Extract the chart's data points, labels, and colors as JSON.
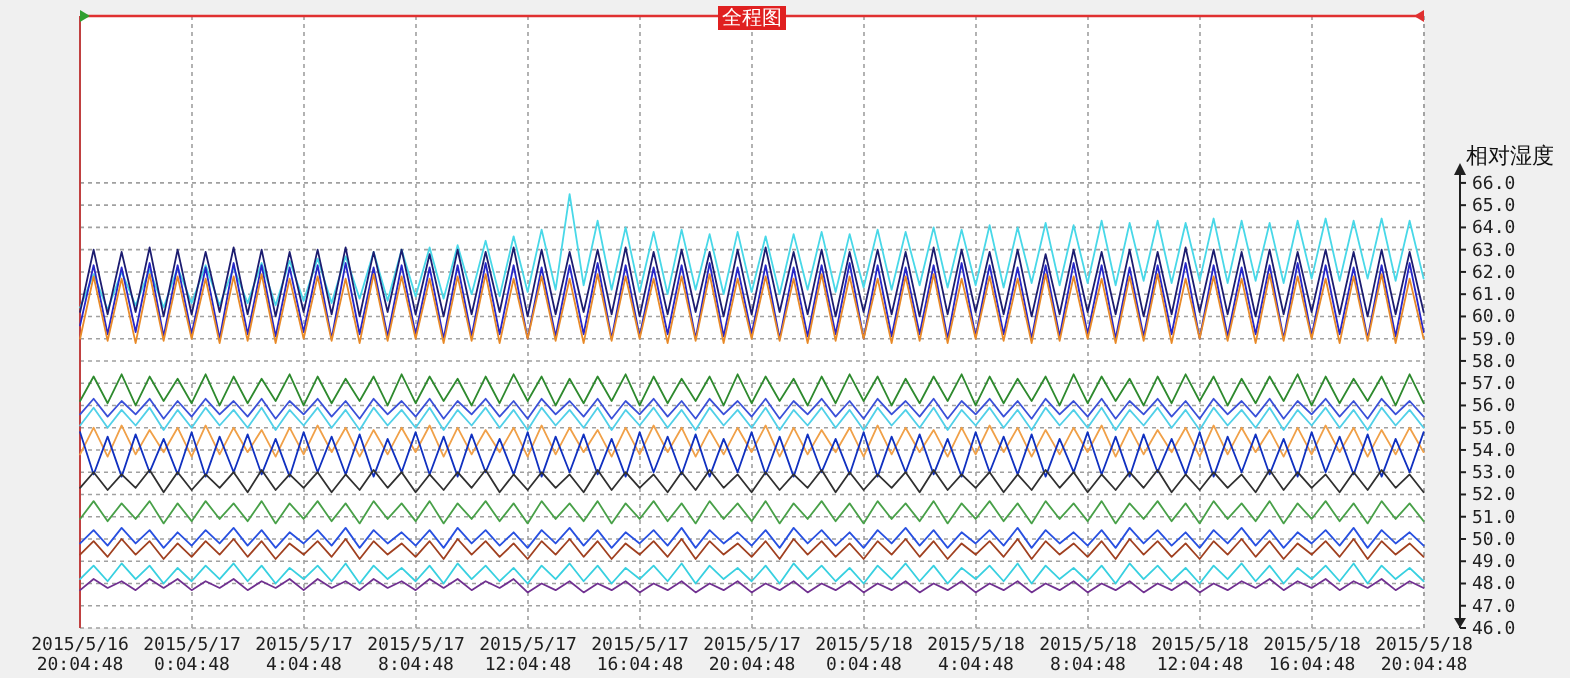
{
  "chart_data": {
    "type": "line",
    "title": "全程图",
    "ylabel": "相对湿度",
    "grid": true,
    "xlim": [
      "2015-05-16T20:04:48",
      "2015-05-18T20:04:48"
    ],
    "xticks": [
      {
        "value": "2015-05-16T20:04:48",
        "label": "2015/5/16 20:04:48"
      },
      {
        "value": "2015-05-17T00:04:48",
        "label": "2015/5/17 0:04:48"
      },
      {
        "value": "2015-05-17T04:04:48",
        "label": "2015/5/17 4:04:48"
      },
      {
        "value": "2015-05-17T08:04:48",
        "label": "2015/5/17 8:04:48"
      },
      {
        "value": "2015-05-17T12:04:48",
        "label": "2015/5/17 12:04:48"
      },
      {
        "value": "2015-05-17T16:04:48",
        "label": "2015/5/17 16:04:48"
      },
      {
        "value": "2015-05-17T20:04:48",
        "label": "2015/5/17 20:04:48"
      },
      {
        "value": "2015-05-18T00:04:48",
        "label": "2015/5/18 0:04:48"
      },
      {
        "value": "2015-05-18T04:04:48",
        "label": "2015/5/18 4:04:48"
      },
      {
        "value": "2015-05-18T08:04:48",
        "label": "2015/5/18 8:04:48"
      },
      {
        "value": "2015-05-18T12:04:48",
        "label": "2015/5/18 12:04:48"
      },
      {
        "value": "2015-05-18T16:04:48",
        "label": "2015/5/18 16:04:48"
      },
      {
        "value": "2015-05-18T20:04:48",
        "label": "2015/5/18 20:04:48"
      }
    ],
    "ylim": [
      46,
      73.5
    ],
    "yticks": [
      {
        "value": 46,
        "label": "46.0"
      },
      {
        "value": 47,
        "label": "47.0"
      },
      {
        "value": 48,
        "label": "48.0"
      },
      {
        "value": 49,
        "label": "49.0"
      },
      {
        "value": 50,
        "label": "50.0"
      },
      {
        "value": 51,
        "label": "51.0"
      },
      {
        "value": 52,
        "label": "52.0"
      },
      {
        "value": 53,
        "label": "53.0"
      },
      {
        "value": 54,
        "label": "54.0"
      },
      {
        "value": 55,
        "label": "55.0"
      },
      {
        "value": 56,
        "label": "56.0"
      },
      {
        "value": 57,
        "label": "57.0"
      },
      {
        "value": 58,
        "label": "58.0"
      },
      {
        "value": 59,
        "label": "59.0"
      },
      {
        "value": 60,
        "label": "60.0"
      },
      {
        "value": 61,
        "label": "61.0"
      },
      {
        "value": 62,
        "label": "62.0"
      },
      {
        "value": 63,
        "label": "63.0"
      },
      {
        "value": 64,
        "label": "64.0"
      },
      {
        "value": 65,
        "label": "65.0"
      },
      {
        "value": 66,
        "label": "66.0"
      }
    ],
    "x": [
      "2015-05-16T20:05",
      "2015-05-16T20:34",
      "2015-05-16T21:04",
      "2015-05-16T21:34",
      "2015-05-16T22:04",
      "2015-05-16T22:34",
      "2015-05-16T23:04",
      "2015-05-16T23:34",
      "2015-05-17T00:04",
      "2015-05-17T00:34",
      "2015-05-17T01:04",
      "2015-05-17T01:34",
      "2015-05-17T02:04",
      "2015-05-17T02:34",
      "2015-05-17T03:04",
      "2015-05-17T03:34",
      "2015-05-17T04:04",
      "2015-05-17T04:34",
      "2015-05-17T05:04",
      "2015-05-17T05:34",
      "2015-05-17T06:04",
      "2015-05-17T06:34",
      "2015-05-17T07:04",
      "2015-05-17T07:34",
      "2015-05-17T08:04",
      "2015-05-17T08:34",
      "2015-05-17T09:04",
      "2015-05-17T09:34",
      "2015-05-17T10:04",
      "2015-05-17T10:34",
      "2015-05-17T11:04",
      "2015-05-17T11:34",
      "2015-05-17T12:04",
      "2015-05-17T12:34",
      "2015-05-17T13:04",
      "2015-05-17T13:34",
      "2015-05-17T14:04",
      "2015-05-17T14:34",
      "2015-05-17T15:04",
      "2015-05-17T15:34",
      "2015-05-17T16:04",
      "2015-05-17T16:34",
      "2015-05-17T17:04",
      "2015-05-17T17:34",
      "2015-05-17T18:04",
      "2015-05-17T18:34",
      "2015-05-17T19:04",
      "2015-05-17T19:34",
      "2015-05-17T20:04",
      "2015-05-17T20:34",
      "2015-05-17T21:04",
      "2015-05-17T21:34",
      "2015-05-17T22:04",
      "2015-05-17T22:34",
      "2015-05-17T23:04",
      "2015-05-17T23:34",
      "2015-05-18T00:04",
      "2015-05-18T00:34",
      "2015-05-18T01:04",
      "2015-05-18T01:34",
      "2015-05-18T02:04",
      "2015-05-18T02:34",
      "2015-05-18T03:04",
      "2015-05-18T03:34",
      "2015-05-18T04:04",
      "2015-05-18T04:34",
      "2015-05-18T05:04",
      "2015-05-18T05:34",
      "2015-05-18T06:04",
      "2015-05-18T06:34",
      "2015-05-18T07:04",
      "2015-05-18T07:34",
      "2015-05-18T08:04",
      "2015-05-18T08:34",
      "2015-05-18T09:04",
      "2015-05-18T09:34",
      "2015-05-18T10:04",
      "2015-05-18T10:34",
      "2015-05-18T11:04",
      "2015-05-18T11:34",
      "2015-05-18T12:04",
      "2015-05-18T12:34",
      "2015-05-18T13:04",
      "2015-05-18T13:34",
      "2015-05-18T14:04",
      "2015-05-18T14:34",
      "2015-05-18T15:04",
      "2015-05-18T15:34",
      "2015-05-18T16:04",
      "2015-05-18T16:34",
      "2015-05-18T17:04",
      "2015-05-18T17:34",
      "2015-05-18T18:04",
      "2015-05-18T18:34",
      "2015-05-18T19:04",
      "2015-05-18T19:34",
      "2015-05-18T20:04"
    ],
    "series": [
      {
        "color": "#48d8e8",
        "values": [
          60.4,
          61.9,
          60.3,
          62.0,
          60.5,
          62.1,
          60.4,
          62.2,
          60.6,
          62.3,
          60.5,
          62.2,
          60.6,
          62.4,
          60.5,
          62.5,
          60.7,
          62.6,
          60.6,
          62.7,
          60.8,
          62.9,
          60.7,
          63.0,
          60.9,
          63.1,
          60.8,
          63.2,
          61.0,
          63.4,
          60.9,
          63.6,
          61.1,
          63.9,
          61.2,
          65.5,
          61.4,
          64.3,
          61.2,
          64.0,
          61.1,
          63.8,
          61.0,
          63.9,
          61.2,
          63.7,
          61.0,
          63.8,
          61.1,
          63.6,
          61.0,
          63.7,
          61.2,
          63.8,
          61.1,
          63.7,
          61.3,
          63.9,
          61.2,
          63.8,
          61.4,
          64.0,
          61.3,
          63.9,
          61.4,
          64.1,
          61.3,
          64.0,
          61.5,
          64.2,
          61.4,
          64.1,
          61.5,
          64.3,
          61.4,
          64.2,
          61.6,
          64.3,
          61.5,
          64.2,
          61.6,
          64.4,
          61.5,
          64.3,
          61.6,
          64.2,
          61.5,
          64.3,
          61.7,
          64.4,
          61.6,
          64.3,
          61.7,
          64.4,
          61.6,
          64.3,
          61.7
        ]
      },
      {
        "color": "#1c1c70",
        "values": [
          60.2,
          63.0,
          60.1,
          62.9,
          60.2,
          63.1,
          60.0,
          63.0,
          60.1,
          62.9,
          60.2,
          63.1,
          60.1,
          63.0,
          60.0,
          62.9,
          60.2,
          63.0,
          60.1,
          63.1,
          60.0,
          62.9,
          60.2,
          63.0,
          60.1,
          62.8,
          60.0,
          63.0,
          60.1,
          62.9,
          60.2,
          63.1,
          60.0,
          63.0,
          60.1,
          62.9,
          60.2,
          63.0,
          60.1,
          63.1,
          60.0,
          62.9,
          60.1,
          63.0,
          60.2,
          62.9,
          60.0,
          63.0,
          60.1,
          63.1,
          60.2,
          62.9,
          60.1,
          63.0,
          60.0,
          62.9,
          60.2,
          63.0,
          60.1,
          62.9,
          60.0,
          63.1,
          60.1,
          63.0,
          60.2,
          62.9,
          60.1,
          63.0,
          60.0,
          62.8,
          60.1,
          63.0,
          60.2,
          62.9,
          60.1,
          63.0,
          60.0,
          62.9,
          60.1,
          63.1,
          60.2,
          63.0,
          60.1,
          62.9,
          60.0,
          63.0,
          60.1,
          62.9,
          60.2,
          63.0,
          60.1,
          62.9,
          60.0,
          63.0,
          60.1,
          62.9,
          60.2
        ]
      },
      {
        "color": "#2626c8",
        "values": [
          59.6,
          62.3,
          59.2,
          62.2,
          59.3,
          62.4,
          59.1,
          62.3,
          59.2,
          62.2,
          59.0,
          62.4,
          59.2,
          62.3,
          59.1,
          62.2,
          59.3,
          62.3,
          59.0,
          62.4,
          59.2,
          62.2,
          59.1,
          62.3,
          59.2,
          62.2,
          59.0,
          62.3,
          59.1,
          62.4,
          59.2,
          62.3,
          59.0,
          62.2,
          59.1,
          62.3,
          59.2,
          62.4,
          59.0,
          62.3,
          59.1,
          62.2,
          59.2,
          62.3,
          59.0,
          62.4,
          59.1,
          62.2,
          59.2,
          62.3,
          59.0,
          62.2,
          59.1,
          62.3,
          59.2,
          62.4,
          59.0,
          62.3,
          59.1,
          62.2,
          59.2,
          62.3,
          59.0,
          62.4,
          59.1,
          62.3,
          59.2,
          62.2,
          59.0,
          62.3,
          59.1,
          62.4,
          59.2,
          62.3,
          59.0,
          62.2,
          59.1,
          62.3,
          59.2,
          62.4,
          59.0,
          62.3,
          59.1,
          62.2,
          59.2,
          62.3,
          59.0,
          62.4,
          59.1,
          62.3,
          59.2,
          62.2,
          59.0,
          62.3,
          59.1,
          62.4,
          59.3
        ]
      },
      {
        "color": "#e88a28",
        "values": [
          59.0,
          61.8,
          58.9,
          61.7,
          58.8,
          61.9,
          58.9,
          61.8,
          59.0,
          61.7,
          58.8,
          61.8,
          58.9,
          61.9,
          58.8,
          61.7,
          59.0,
          61.8,
          58.9,
          61.7,
          58.8,
          61.9,
          58.9,
          61.8,
          59.0,
          61.7,
          58.8,
          61.8,
          58.9,
          61.9,
          58.8,
          61.7,
          59.0,
          61.8,
          58.9,
          61.7,
          58.8,
          61.9,
          58.9,
          61.8,
          59.0,
          61.7,
          58.8,
          61.8,
          58.9,
          61.9,
          58.8,
          61.7,
          59.0,
          61.8,
          58.9,
          61.7,
          58.8,
          61.9,
          58.9,
          61.8,
          59.0,
          61.7,
          58.8,
          61.8,
          58.9,
          61.9,
          58.8,
          61.7,
          59.0,
          61.8,
          58.9,
          61.7,
          58.8,
          61.9,
          58.9,
          61.8,
          59.0,
          61.7,
          58.8,
          61.8,
          58.9,
          61.9,
          58.8,
          61.7,
          59.0,
          61.8,
          58.9,
          61.7,
          58.8,
          61.9,
          58.9,
          61.8,
          59.0,
          61.7,
          58.8,
          61.8,
          58.9,
          61.9,
          58.8,
          61.7,
          59.0
        ]
      },
      {
        "color": "#2e8a2e",
        "values": [
          56.2,
          57.3,
          56.1,
          57.4,
          56.0,
          57.3,
          56.2,
          57.2,
          56.1,
          57.4,
          56.0,
          57.3,
          56.1,
          57.2,
          56.2,
          57.4,
          56.0,
          57.3,
          56.1,
          57.2,
          56.2,
          57.3,
          56.0,
          57.4,
          56.1,
          57.3,
          56.2,
          57.2,
          56.0,
          57.3,
          56.1,
          57.4,
          56.2,
          57.3,
          56.0,
          57.2,
          56.1,
          57.3,
          56.2,
          57.4,
          56.0,
          57.3,
          56.1,
          57.2,
          56.2,
          57.3,
          56.0,
          57.4,
          56.1,
          57.3,
          56.2,
          57.2,
          56.0,
          57.3,
          56.1,
          57.4,
          56.2,
          57.3,
          56.0,
          57.2,
          56.1,
          57.3,
          56.2,
          57.4,
          56.0,
          57.3,
          56.1,
          57.2,
          56.2,
          57.3,
          56.0,
          57.4,
          56.1,
          57.3,
          56.2,
          57.2,
          56.0,
          57.3,
          56.1,
          57.4,
          56.2,
          57.3,
          56.0,
          57.2,
          56.1,
          57.3,
          56.2,
          57.4,
          56.0,
          57.3,
          56.1,
          57.2,
          56.2,
          57.3,
          56.0,
          57.4,
          56.1
        ]
      },
      {
        "color": "#3a50d8",
        "values": [
          55.6,
          56.3,
          55.5,
          56.2,
          55.6,
          56.3,
          55.4,
          56.2,
          55.5,
          56.3,
          55.6,
          56.2,
          55.5,
          56.3,
          55.4,
          56.2,
          55.6,
          56.3,
          55.5,
          56.2,
          55.4,
          56.3,
          55.6,
          56.2,
          55.5,
          56.3,
          55.4,
          56.2,
          55.6,
          56.3,
          55.5,
          56.2,
          55.4,
          56.3,
          55.6,
          56.2,
          55.5,
          56.3,
          55.4,
          56.2,
          55.6,
          56.3,
          55.5,
          56.2,
          55.4,
          56.3,
          55.6,
          56.2,
          55.5,
          56.3,
          55.4,
          56.2,
          55.6,
          56.3,
          55.5,
          56.2,
          55.4,
          56.3,
          55.6,
          56.2,
          55.5,
          56.3,
          55.4,
          56.2,
          55.6,
          56.3,
          55.5,
          56.2,
          55.4,
          56.3,
          55.6,
          56.2,
          55.5,
          56.3,
          55.4,
          56.2,
          55.6,
          56.3,
          55.5,
          56.2,
          55.4,
          56.3,
          55.6,
          56.2,
          55.5,
          56.3,
          55.4,
          56.2,
          55.6,
          56.3,
          55.5,
          56.2,
          55.4,
          56.3,
          55.6,
          56.2,
          55.5
        ]
      },
      {
        "color": "#50d0e8",
        "values": [
          55.1,
          55.9,
          55.0,
          55.8,
          55.1,
          55.9,
          54.9,
          55.8,
          55.0,
          55.9,
          55.1,
          55.8,
          55.0,
          55.9,
          54.9,
          55.8,
          55.1,
          55.9,
          55.0,
          55.8,
          54.9,
          55.9,
          55.1,
          55.8,
          55.0,
          55.9,
          54.9,
          55.8,
          55.1,
          55.9,
          55.0,
          55.8,
          54.9,
          55.9,
          55.1,
          55.8,
          55.0,
          55.9,
          54.9,
          55.8,
          55.1,
          55.9,
          55.0,
          55.8,
          54.9,
          55.9,
          55.1,
          55.8,
          55.0,
          55.9,
          54.9,
          55.8,
          55.1,
          55.9,
          55.0,
          55.8,
          54.9,
          55.9,
          55.1,
          55.8,
          55.0,
          55.9,
          54.9,
          55.8,
          55.1,
          55.9,
          55.0,
          55.8,
          54.9,
          55.9,
          55.1,
          55.8,
          55.0,
          55.9,
          54.9,
          55.8,
          55.1,
          55.9,
          55.0,
          55.8,
          54.9,
          55.9,
          55.1,
          55.8,
          55.0,
          55.9,
          54.9,
          55.8,
          55.1,
          55.9,
          55.0,
          55.8,
          54.9,
          55.9,
          55.1,
          55.8,
          55.0
        ]
      },
      {
        "color": "#f0a048",
        "values": [
          53.8,
          55.0,
          53.7,
          55.1,
          53.8,
          54.9,
          53.9,
          55.0,
          53.7,
          55.1,
          53.8,
          55.0,
          53.9,
          54.9,
          53.7,
          55.0,
          53.8,
          55.1,
          53.9,
          55.0,
          53.7,
          54.9,
          53.8,
          55.0,
          53.9,
          55.1,
          53.7,
          55.0,
          53.8,
          54.9,
          53.9,
          55.0,
          53.7,
          55.1,
          53.8,
          55.0,
          53.9,
          54.9,
          53.7,
          55.0,
          53.8,
          55.1,
          53.9,
          55.0,
          53.7,
          54.9,
          53.8,
          55.0,
          53.9,
          55.1,
          53.7,
          55.0,
          53.8,
          54.9,
          53.9,
          55.0,
          53.7,
          55.1,
          53.8,
          55.0,
          53.9,
          54.9,
          53.7,
          55.0,
          53.8,
          55.1,
          53.9,
          55.0,
          53.7,
          54.9,
          53.8,
          55.0,
          53.9,
          55.1,
          53.7,
          55.0,
          53.8,
          54.9,
          53.9,
          55.0,
          53.7,
          55.1,
          53.8,
          55.0,
          53.9,
          54.9,
          53.7,
          55.0,
          53.8,
          55.1,
          53.9,
          55.0,
          53.7,
          54.9,
          53.8,
          55.0,
          53.9
        ]
      },
      {
        "color": "#1030c0",
        "values": [
          54.8,
          52.9,
          54.6,
          52.8,
          54.7,
          53.0,
          54.5,
          52.9,
          54.8,
          52.8,
          54.6,
          53.0,
          54.7,
          52.9,
          54.5,
          52.8,
          54.8,
          53.0,
          54.6,
          52.9,
          54.7,
          52.8,
          54.5,
          53.0,
          54.8,
          52.9,
          54.6,
          52.8,
          54.7,
          53.0,
          54.5,
          52.9,
          54.8,
          52.8,
          54.6,
          53.0,
          54.7,
          52.9,
          54.5,
          52.8,
          54.8,
          53.0,
          54.6,
          52.9,
          54.7,
          52.8,
          54.5,
          53.0,
          54.8,
          52.9,
          54.6,
          52.8,
          54.7,
          53.0,
          54.5,
          52.9,
          54.8,
          52.8,
          54.6,
          53.0,
          54.7,
          52.9,
          54.5,
          52.8,
          54.8,
          53.0,
          54.6,
          52.9,
          54.7,
          52.8,
          54.5,
          53.0,
          54.8,
          52.9,
          54.6,
          52.8,
          54.7,
          53.0,
          54.5,
          52.9,
          54.8,
          52.8,
          54.6,
          53.0,
          54.7,
          52.9,
          54.5,
          52.8,
          54.8,
          53.0,
          54.6,
          52.9,
          54.7,
          52.8,
          54.5,
          53.0,
          54.8
        ]
      },
      {
        "color": "#303030",
        "values": [
          52.3,
          53.0,
          52.2,
          52.9,
          52.3,
          53.1,
          52.1,
          53.0,
          52.2,
          52.9,
          52.3,
          53.0,
          52.1,
          53.1,
          52.2,
          52.9,
          52.3,
          53.0,
          52.1,
          52.9,
          52.2,
          53.1,
          52.3,
          53.0,
          52.1,
          52.9,
          52.2,
          53.0,
          52.3,
          53.1,
          52.1,
          52.9,
          52.2,
          53.0,
          52.3,
          52.9,
          52.1,
          53.1,
          52.2,
          53.0,
          52.3,
          52.9,
          52.1,
          53.0,
          52.2,
          53.1,
          52.3,
          52.9,
          52.1,
          53.0,
          52.2,
          52.9,
          52.3,
          53.1,
          52.1,
          53.0,
          52.2,
          52.9,
          52.3,
          53.0,
          52.1,
          53.1,
          52.2,
          52.9,
          52.3,
          53.0,
          52.1,
          52.9,
          52.2,
          53.1,
          52.3,
          53.0,
          52.1,
          52.9,
          52.2,
          53.0,
          52.3,
          53.1,
          52.1,
          52.9,
          52.2,
          53.0,
          52.3,
          52.9,
          52.1,
          53.1,
          52.2,
          53.0,
          52.3,
          52.9,
          52.1,
          53.0,
          52.2,
          53.1,
          52.3,
          52.9,
          52.1
        ]
      },
      {
        "color": "#48a048",
        "values": [
          50.9,
          51.7,
          50.8,
          51.6,
          50.9,
          51.7,
          50.7,
          51.6,
          50.8,
          51.7,
          50.9,
          51.6,
          50.8,
          51.7,
          50.7,
          51.6,
          50.9,
          51.7,
          50.8,
          51.6,
          50.7,
          51.7,
          50.9,
          51.6,
          50.8,
          51.7,
          50.7,
          51.6,
          50.9,
          51.7,
          50.8,
          51.6,
          50.7,
          51.7,
          50.9,
          51.6,
          50.8,
          51.7,
          50.7,
          51.6,
          50.9,
          51.7,
          50.8,
          51.6,
          50.7,
          51.7,
          50.9,
          51.6,
          50.8,
          51.7,
          50.7,
          51.6,
          50.9,
          51.7,
          50.8,
          51.6,
          50.7,
          51.7,
          50.9,
          51.6,
          50.8,
          51.7,
          50.7,
          51.6,
          50.9,
          51.7,
          50.8,
          51.6,
          50.7,
          51.7,
          50.9,
          51.6,
          50.8,
          51.7,
          50.7,
          51.6,
          50.9,
          51.7,
          50.8,
          51.6,
          50.7,
          51.7,
          50.9,
          51.6,
          50.8,
          51.7,
          50.7,
          51.6,
          50.9,
          51.7,
          50.8,
          51.6,
          50.7,
          51.7,
          50.9,
          51.6,
          50.8
        ]
      },
      {
        "color": "#2850e0",
        "values": [
          49.8,
          50.4,
          49.7,
          50.5,
          49.8,
          50.4,
          49.6,
          50.3,
          49.7,
          50.4,
          49.8,
          50.5,
          49.7,
          50.4,
          49.6,
          50.3,
          49.8,
          50.4,
          49.7,
          50.5,
          49.6,
          50.4,
          49.8,
          50.3,
          49.7,
          50.4,
          49.6,
          50.5,
          49.8,
          50.4,
          49.7,
          50.3,
          49.6,
          50.4,
          49.8,
          50.5,
          49.7,
          50.4,
          49.6,
          50.3,
          49.8,
          50.4,
          49.7,
          50.5,
          49.6,
          50.4,
          49.8,
          50.3,
          49.7,
          50.4,
          49.6,
          50.5,
          49.8,
          50.4,
          49.7,
          50.3,
          49.6,
          50.4,
          49.8,
          50.5,
          49.7,
          50.4,
          49.6,
          50.3,
          49.8,
          50.4,
          49.7,
          50.5,
          49.6,
          50.4,
          49.8,
          50.3,
          49.7,
          50.4,
          49.6,
          50.5,
          49.8,
          50.4,
          49.7,
          50.3,
          49.6,
          50.4,
          49.8,
          50.5,
          49.7,
          50.4,
          49.6,
          50.3,
          49.8,
          50.4,
          49.7,
          50.5,
          49.6,
          50.4,
          49.8,
          50.3,
          49.7
        ]
      },
      {
        "color": "#a04020",
        "values": [
          49.3,
          49.9,
          49.2,
          50.0,
          49.3,
          49.9,
          49.1,
          49.8,
          49.2,
          49.9,
          49.3,
          50.0,
          49.2,
          49.9,
          49.1,
          49.8,
          49.3,
          49.9,
          49.2,
          50.0,
          49.1,
          49.9,
          49.3,
          49.8,
          49.2,
          49.9,
          49.1,
          50.0,
          49.3,
          49.9,
          49.2,
          49.8,
          49.1,
          49.9,
          49.3,
          50.0,
          49.2,
          49.9,
          49.1,
          49.8,
          49.3,
          49.9,
          49.2,
          50.0,
          49.1,
          49.9,
          49.3,
          49.8,
          49.2,
          49.9,
          49.1,
          50.0,
          49.3,
          49.9,
          49.2,
          49.8,
          49.1,
          49.9,
          49.3,
          50.0,
          49.2,
          49.9,
          49.1,
          49.8,
          49.3,
          49.9,
          49.2,
          50.0,
          49.1,
          49.9,
          49.3,
          49.8,
          49.2,
          49.9,
          49.1,
          50.0,
          49.3,
          49.9,
          49.2,
          49.8,
          49.1,
          49.9,
          49.3,
          50.0,
          49.2,
          49.9,
          49.1,
          49.8,
          49.3,
          49.9,
          49.2,
          50.0,
          49.1,
          49.9,
          49.3,
          49.8,
          49.2
        ]
      },
      {
        "color": "#38d0e0",
        "values": [
          48.2,
          48.8,
          48.1,
          48.9,
          48.2,
          48.8,
          48.0,
          48.7,
          48.1,
          48.8,
          48.2,
          48.9,
          48.1,
          48.8,
          48.0,
          48.7,
          48.2,
          48.8,
          48.1,
          48.9,
          48.0,
          48.8,
          48.2,
          48.7,
          48.1,
          48.8,
          48.0,
          48.9,
          48.2,
          48.8,
          48.1,
          48.7,
          48.0,
          48.8,
          48.2,
          48.9,
          48.1,
          48.8,
          48.0,
          48.7,
          48.2,
          48.8,
          48.1,
          48.9,
          48.0,
          48.8,
          48.2,
          48.7,
          48.1,
          48.8,
          48.0,
          48.9,
          48.2,
          48.8,
          48.1,
          48.7,
          48.0,
          48.8,
          48.2,
          48.9,
          48.1,
          48.8,
          48.0,
          48.7,
          48.2,
          48.8,
          48.1,
          48.9,
          48.0,
          48.8,
          48.2,
          48.7,
          48.1,
          48.8,
          48.0,
          48.9,
          48.2,
          48.8,
          48.1,
          48.7,
          48.0,
          48.8,
          48.2,
          48.9,
          48.1,
          48.8,
          48.0,
          48.7,
          48.2,
          48.8,
          48.1,
          48.9,
          48.0,
          48.8,
          48.2,
          48.7,
          48.1
        ]
      },
      {
        "color": "#703090",
        "values": [
          47.7,
          48.2,
          47.8,
          48.1,
          47.7,
          48.2,
          47.8,
          48.2,
          47.7,
          48.1,
          47.8,
          48.2,
          47.7,
          48.1,
          47.8,
          48.2,
          47.7,
          48.2,
          47.8,
          48.1,
          47.7,
          48.2,
          47.8,
          48.1,
          47.7,
          48.2,
          47.8,
          48.2,
          47.7,
          48.1,
          47.8,
          48.2,
          47.6,
          48.0,
          47.7,
          48.1,
          47.6,
          48.0,
          47.7,
          48.1,
          47.6,
          48.0,
          47.7,
          48.1,
          47.6,
          48.0,
          47.7,
          48.1,
          47.6,
          48.0,
          47.7,
          48.1,
          47.6,
          48.0,
          47.7,
          48.1,
          47.6,
          48.0,
          47.7,
          48.1,
          47.6,
          48.0,
          47.7,
          48.1,
          47.6,
          48.0,
          47.7,
          48.1,
          47.6,
          48.0,
          47.7,
          48.1,
          47.6,
          48.0,
          47.7,
          48.1,
          47.6,
          48.0,
          47.7,
          48.1,
          47.6,
          48.0,
          47.7,
          48.1,
          47.8,
          48.2,
          47.7,
          48.1,
          47.8,
          48.2,
          47.7,
          48.1,
          47.8,
          48.2,
          47.7,
          48.1,
          47.8
        ]
      }
    ]
  }
}
